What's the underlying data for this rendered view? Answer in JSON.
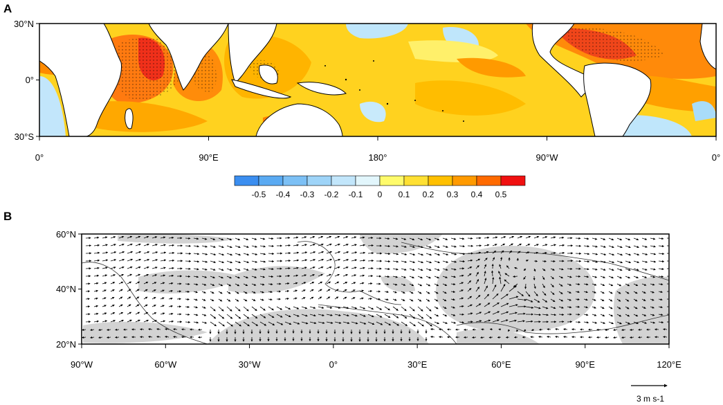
{
  "panel_a": {
    "label": "A",
    "lat_ticks": [
      "30°N",
      "0°",
      "30°S"
    ],
    "lon_ticks": [
      "0°",
      "90°E",
      "180°",
      "90°W",
      "0°"
    ]
  },
  "colorbar": {
    "ticks": [
      "-0.5",
      "-0.4",
      "-0.3",
      "-0.2",
      "-0.1",
      "0",
      "0.1",
      "0.2",
      "0.3",
      "0.4",
      "0.5"
    ],
    "colors": [
      "#3b8ef0",
      "#5aaaf2",
      "#7cc0f5",
      "#9ed4f8",
      "#c2e6fb",
      "#e2f6fc",
      "#fffb6b",
      "#ffe033",
      "#ffc000",
      "#ff9a00",
      "#ff6a00",
      "#f01010"
    ]
  },
  "panel_b": {
    "label": "B",
    "lat_ticks": [
      "60°N",
      "40°N",
      "20°N"
    ],
    "lon_ticks": [
      "90°W",
      "60°W",
      "30°W",
      "0°",
      "30°E",
      "60°E",
      "90°E",
      "120°E"
    ],
    "ref_vector_label": "3 m s-1"
  },
  "chart_data": [
    {
      "type": "heatmap",
      "panel": "A",
      "x_range_deg_east": [
        0,
        360
      ],
      "y_range_deg": [
        -30,
        30
      ],
      "color_levels": [
        -0.5,
        -0.4,
        -0.3,
        -0.2,
        -0.1,
        0,
        0.1,
        0.2,
        0.3,
        0.4,
        0.5
      ],
      "regions": [
        {
          "lon": [
            40,
            80
          ],
          "lat": [
            -15,
            30
          ],
          "value": 0.45
        },
        {
          "lon": [
            80,
            100
          ],
          "lat": [
            -20,
            20
          ],
          "value": 0.35
        },
        {
          "lon": [
            100,
            150
          ],
          "lat": [
            -10,
            30
          ],
          "value": 0.25
        },
        {
          "lon": [
            150,
            240
          ],
          "lat": [
            -30,
            30
          ],
          "value": 0.15
        },
        {
          "lon": [
            180,
            210
          ],
          "lat": [
            15,
            30
          ],
          "value": -0.15
        },
        {
          "lon": [
            160,
            175
          ],
          "lat": [
            -15,
            -5
          ],
          "value": -0.15
        },
        {
          "lon": [
            240,
            280
          ],
          "lat": [
            -30,
            10
          ],
          "value": 0.25
        },
        {
          "lon": [
            280,
            320
          ],
          "lat": [
            0,
            30
          ],
          "value": 0.4
        },
        {
          "lon": [
            320,
            360
          ],
          "lat": [
            -30,
            30
          ],
          "value": 0.3
        },
        {
          "lon": [
            0,
            15
          ],
          "lat": [
            -30,
            -5
          ],
          "value": -0.1
        }
      ]
    },
    {
      "type": "vector",
      "panel": "B",
      "x_range_deg": [
        -90,
        120
      ],
      "y_range_deg": [
        20,
        60
      ],
      "reference_vector": 3,
      "circulation_features": [
        {
          "type": "anticyclone",
          "center_lon": 60,
          "center_lat": 40
        }
      ]
    }
  ]
}
